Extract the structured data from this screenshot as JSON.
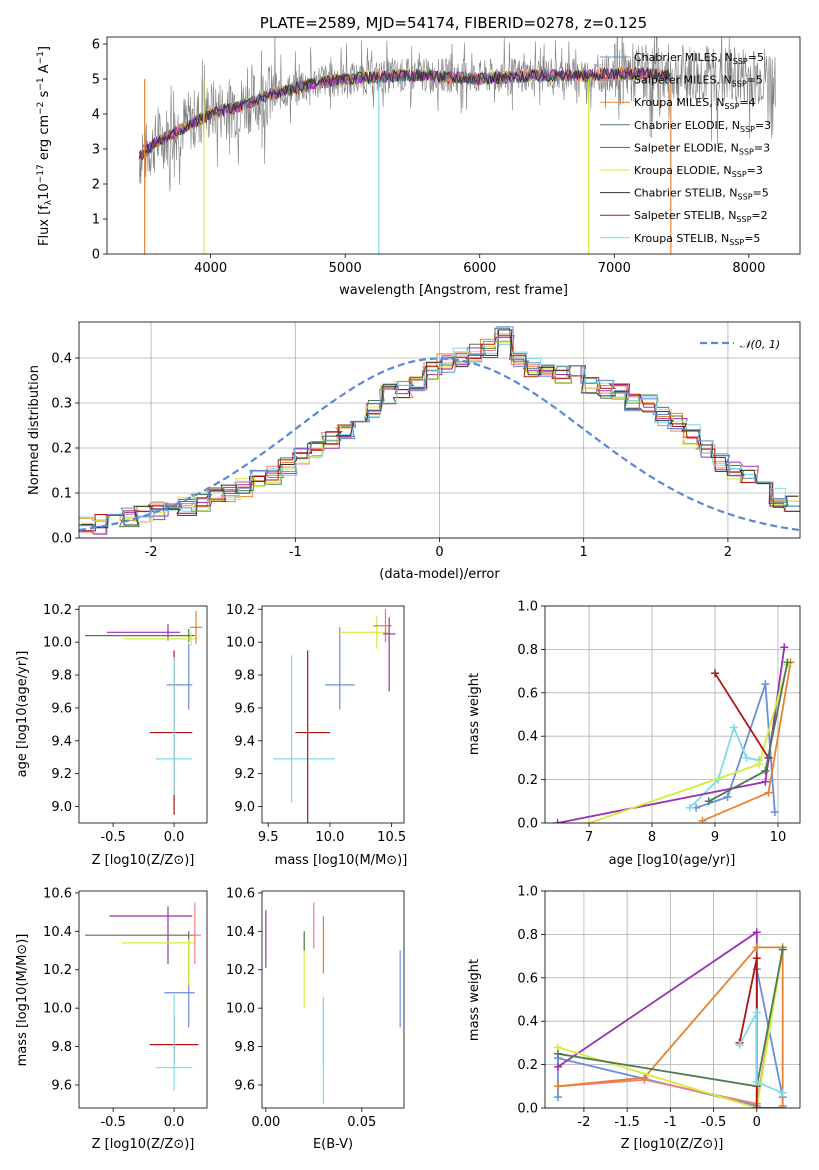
{
  "chart_data": [
    {
      "type": "line",
      "id": "spectrum",
      "title": "PLATE=2589, MJD=54174, FIBERID=0278, z=0.125",
      "xlabel": "wavelength [Angstrom, rest frame]",
      "ylabel": "Flux [f_λ 10^-17 erg cm^-2 s^-1 A^-1]",
      "xlim": [
        3230,
        8380
      ],
      "ylim": [
        0,
        6.2
      ],
      "xticks": [
        4000,
        5000,
        6000,
        7000,
        8000
      ],
      "yticks": [
        0,
        1,
        2,
        3,
        4,
        5,
        6
      ],
      "grid": false,
      "legend_position": "top-right",
      "data_continuum_x": [
        3470,
        3600,
        3800,
        4000,
        4200,
        4400,
        4600,
        4800,
        5000,
        5200,
        5400,
        5600,
        5800,
        6000,
        6200,
        6400,
        6600,
        6800,
        7000,
        7200,
        7400,
        7600,
        7800,
        8000,
        8200
      ],
      "data_continuum_y": [
        2.7,
        3.2,
        3.7,
        4.1,
        4.2,
        4.5,
        4.7,
        4.95,
        5.0,
        5.05,
        5.1,
        5.1,
        5.1,
        5.05,
        5.1,
        5.15,
        5.15,
        5.1,
        5.15,
        5.15,
        5.1,
        5.1,
        5.05,
        5.05,
        5.05
      ],
      "model_x": [
        3470,
        3600,
        3800,
        4000,
        4200,
        4400,
        4600,
        4800,
        5000,
        5200,
        5400,
        5600,
        5800,
        6000,
        6200,
        6400,
        6600,
        6800,
        7000,
        7200,
        7400
      ],
      "model_y": [
        2.8,
        3.2,
        3.6,
        4.0,
        4.2,
        4.5,
        4.7,
        4.9,
        5.0,
        5.05,
        5.1,
        5.1,
        5.05,
        5.0,
        5.05,
        5.1,
        5.1,
        5.1,
        5.15,
        5.15,
        5.1
      ],
      "series": [
        {
          "name": "Chabrier MILES, N_SSP=5",
          "color": "#6a8fd8"
        },
        {
          "name": "Salpeter MILES, N_SSP=5",
          "color": "#f08080"
        },
        {
          "name": "Kroupa MILES, N_SSP=4",
          "color": "#e8822e"
        },
        {
          "name": "Chabrier ELODIE, N_SSP=3",
          "color": "#4e7a55"
        },
        {
          "name": "Salpeter ELODIE, N_SSP=3",
          "color": "#9b30b0"
        },
        {
          "name": "Kroupa ELODIE, N_SSP=3",
          "color": "#d4ec3c"
        },
        {
          "name": "Chabrier STELIB, N_SSP=5",
          "color": "#333333"
        },
        {
          "name": "Salpeter STELIB, N_SSP=2",
          "color": "#b01515"
        },
        {
          "name": "Kroupa STELIB, N_SSP=5",
          "color": "#7fdce8"
        }
      ]
    },
    {
      "type": "histogram",
      "id": "residuals",
      "xlabel": "(data-model)/error",
      "ylabel": "Normed distribution",
      "xlim": [
        -2.5,
        2.5
      ],
      "ylim": [
        0,
        0.48
      ],
      "xticks": [
        -2,
        -1,
        0,
        1,
        2
      ],
      "yticks": [
        0.0,
        0.1,
        0.2,
        0.3,
        0.4
      ],
      "grid": true,
      "legend": "𝒩(0, 1)",
      "legend_position": "top-right",
      "bin_width": 0.1,
      "bin_start": -2.5,
      "base_values": [
        0.03,
        0.03,
        0.04,
        0.045,
        0.05,
        0.06,
        0.065,
        0.07,
        0.08,
        0.09,
        0.1,
        0.11,
        0.13,
        0.14,
        0.16,
        0.18,
        0.2,
        0.22,
        0.24,
        0.27,
        0.29,
        0.32,
        0.33,
        0.34,
        0.37,
        0.39,
        0.4,
        0.41,
        0.42,
        0.45,
        0.4,
        0.38,
        0.37,
        0.36,
        0.37,
        0.34,
        0.33,
        0.33,
        0.3,
        0.3,
        0.27,
        0.26,
        0.23,
        0.2,
        0.17,
        0.15,
        0.14,
        0.12,
        0.09,
        0.08
      ]
    },
    {
      "type": "scatter",
      "id": "Z_vs_age",
      "xlabel": "Z [log10(Z/Z⊙)]",
      "ylabel": "age [log10(age/yr)]",
      "xlim": [
        -0.78,
        0.27
      ],
      "ylim": [
        8.9,
        10.22
      ],
      "xticks": [
        -0.5,
        0.0
      ],
      "yticks": [
        9.0,
        9.2,
        9.4,
        9.6,
        9.8,
        10.0,
        10.2
      ],
      "points": [
        {
          "x": 0.12,
          "y": 9.74,
          "xerr": [
            0.18,
            0.03
          ],
          "yerr": [
            0.15,
            0.25
          ],
          "series": 0
        },
        {
          "x": -0.05,
          "y": 10.06,
          "xerr": [
            0.5,
            0.1
          ],
          "yerr": [
            0.05,
            0.05
          ],
          "series": 4
        },
        {
          "x": 0.12,
          "y": 10.04,
          "xerr": [
            0.85,
            0.05
          ],
          "yerr": [
            0.04,
            0.04
          ],
          "series": 3
        },
        {
          "x": 0.14,
          "y": 10.02,
          "xerr": [
            0.55,
            0.05
          ],
          "yerr": [
            0.04,
            0.04
          ],
          "series": 5
        },
        {
          "x": 0.0,
          "y": 9.45,
          "xerr": [
            0.2,
            0.15
          ],
          "yerr": [
            0.5,
            0.5
          ],
          "series": 7
        },
        {
          "x": 0.0,
          "y": 9.29,
          "xerr": [
            0.15,
            0.15
          ],
          "yerr": [
            0.22,
            0.62
          ],
          "series": 8
        },
        {
          "x": 0.18,
          "y": 10.09,
          "xerr": [
            0.05,
            0.05
          ],
          "yerr": [
            0.1,
            0.1
          ],
          "series": 2
        }
      ]
    },
    {
      "type": "scatter",
      "id": "mass_vs_age",
      "xlabel": "mass [log10(M/M⊙)]",
      "ylabel": "",
      "xlim": [
        9.45,
        10.6
      ],
      "ylim": [
        8.9,
        10.22
      ],
      "xticks": [
        9.5,
        10.0,
        10.5
      ],
      "yticks": [
        9.0,
        9.2,
        9.4,
        9.6,
        9.8,
        10.0,
        10.2
      ],
      "points": [
        {
          "x": 9.69,
          "y": 9.29,
          "xerr": [
            0.15,
            0.35
          ],
          "yerr": [
            0.27,
            0.63
          ],
          "series": 8
        },
        {
          "x": 9.82,
          "y": 9.45,
          "xerr": [
            0.1,
            0.18
          ],
          "yerr": [
            0.55,
            0.5
          ],
          "series": 7
        },
        {
          "x": 10.08,
          "y": 9.74,
          "xerr": [
            0.12,
            0.12
          ],
          "yerr": [
            0.15,
            0.35
          ],
          "series": 0
        },
        {
          "x": 10.38,
          "y": 10.06,
          "xerr": [
            0.3,
            0.1
          ],
          "yerr": [
            0.1,
            0.1
          ],
          "series": 5
        },
        {
          "x": 10.45,
          "y": 10.1,
          "xerr": [
            0.1,
            0.05
          ],
          "yerr": [
            0.1,
            0.1
          ],
          "series": 2
        },
        {
          "x": 10.48,
          "y": 10.05,
          "xerr": [
            0.05,
            0.05
          ],
          "yerr": [
            0.35,
            0.1
          ],
          "series": 4
        }
      ]
    },
    {
      "type": "line",
      "id": "age_vs_massweight",
      "xlabel": "age [log10(age/yr)]",
      "ylabel": "mass weight",
      "xlim": [
        6.3,
        10.35
      ],
      "ylim": [
        0,
        1.0
      ],
      "xticks": [
        7,
        8,
        9,
        10
      ],
      "yticks": [
        0.0,
        0.2,
        0.4,
        0.6,
        0.8,
        1.0
      ],
      "series": [
        {
          "color": "#6a8fd8",
          "x": [
            8.7,
            9.2,
            9.8,
            9.95
          ],
          "y": [
            0.07,
            0.12,
            0.64,
            0.05
          ]
        },
        {
          "color": "#7fdce8",
          "x": [
            8.6,
            9.05,
            9.3,
            9.5,
            9.7
          ],
          "y": [
            0.07,
            0.2,
            0.44,
            0.3,
            0.29
          ]
        },
        {
          "color": "#9b30b0",
          "x": [
            6.5,
            9.8,
            10.1
          ],
          "y": [
            0.0,
            0.19,
            0.81
          ]
        },
        {
          "color": "#e8822e",
          "x": [
            8.8,
            9.85,
            10.2
          ],
          "y": [
            0.01,
            0.14,
            0.74
          ]
        },
        {
          "color": "#d4ec3c",
          "x": [
            7.0,
            9.7,
            10.15
          ],
          "y": [
            0.0,
            0.27,
            0.73
          ]
        },
        {
          "color": "#b01515",
          "x": [
            9.0,
            9.85
          ],
          "y": [
            0.69,
            0.3
          ]
        },
        {
          "color": "#4e7a55",
          "x": [
            8.9,
            9.8,
            10.15
          ],
          "y": [
            0.1,
            0.24,
            0.74
          ]
        }
      ]
    },
    {
      "type": "scatter",
      "id": "Z_vs_mass",
      "xlabel": "Z [log10(Z/Z⊙)]",
      "ylabel": "mass [log10(M/M⊙)]",
      "xlim": [
        -0.78,
        0.27
      ],
      "ylim": [
        9.48,
        10.61
      ],
      "xticks": [
        -0.5,
        0.0
      ],
      "yticks": [
        9.6,
        9.8,
        10.0,
        10.2,
        10.4,
        10.6
      ],
      "points": [
        {
          "x": 0.12,
          "y": 10.08,
          "xerr": [
            0.2,
            0.05
          ],
          "yerr": [
            0.18,
            0.08
          ],
          "series": 0
        },
        {
          "x": -0.05,
          "y": 10.48,
          "xerr": [
            0.48,
            0.2
          ],
          "yerr": [
            0.25,
            0.05
          ],
          "series": 4
        },
        {
          "x": 0.12,
          "y": 10.38,
          "xerr": [
            0.85,
            0.05
          ],
          "yerr": [
            0.22,
            0.02
          ],
          "series": 3
        },
        {
          "x": 0.12,
          "y": 10.34,
          "xerr": [
            0.55,
            0.05
          ],
          "yerr": [
            0.22,
            0.02
          ],
          "series": 5
        },
        {
          "x": 0.0,
          "y": 9.81,
          "xerr": [
            0.2,
            0.2
          ],
          "yerr": [
            0.1,
            0.15
          ],
          "series": 7
        },
        {
          "x": 0.0,
          "y": 9.69,
          "xerr": [
            0.15,
            0.15
          ],
          "yerr": [
            0.12,
            0.38
          ],
          "series": 8
        },
        {
          "x": 0.17,
          "y": 10.38,
          "xerr": [
            0.05,
            0.05
          ],
          "yerr": [
            0.15,
            0.17
          ],
          "series": 1
        }
      ]
    },
    {
      "type": "scatter",
      "id": "EBV_vs_mass",
      "xlabel": "E(B-V)",
      "ylabel": "",
      "xlim": [
        -0.002,
        0.072
      ],
      "ylim": [
        9.48,
        10.61
      ],
      "xticks": [
        0.0,
        0.05
      ],
      "yticks": [
        9.6,
        9.8,
        10.0,
        10.2,
        10.4,
        10.6
      ],
      "points": [
        {
          "x": 0.0,
          "y": 10.36,
          "yerr": [
            0.15,
            0.15
          ],
          "series": 4
        },
        {
          "x": 0.02,
          "y": 10.2,
          "yerr": [
            0.2,
            0.2
          ],
          "series": 5
        },
        {
          "x": 0.02,
          "y": 10.35,
          "yerr": [
            0.05,
            0.05
          ],
          "series": 3
        },
        {
          "x": 0.025,
          "y": 10.43,
          "yerr": [
            0.12,
            0.12
          ],
          "series": 1
        },
        {
          "x": 0.03,
          "y": 10.33,
          "yerr": [
            0.15,
            0.15
          ],
          "series": 2
        },
        {
          "x": 0.03,
          "y": 9.88,
          "yerr": [
            0.17,
            0.17
          ],
          "series": 0
        },
        {
          "x": 0.03,
          "y": 9.78,
          "yerr": [
            0.28,
            0.28
          ],
          "series": 8
        },
        {
          "x": 0.07,
          "y": 10.1,
          "yerr": [
            0.2,
            0.2
          ],
          "series": 0
        }
      ]
    },
    {
      "type": "line",
      "id": "Z_vs_massweight",
      "xlabel": "Z [log10(Z/Z⊙)]",
      "ylabel": "mass weight",
      "xlim": [
        -2.45,
        0.5
      ],
      "ylim": [
        0,
        1.0
      ],
      "xticks": [
        -2.0,
        -1.5,
        -1.0,
        -0.5,
        0.0
      ],
      "yticks": [
        0.0,
        0.2,
        0.4,
        0.6,
        0.8,
        1.0
      ],
      "series": [
        {
          "color": "#6a8fd8",
          "x": [
            -2.3,
            -2.3,
            0.0,
            0.0,
            0.3
          ],
          "y": [
            0.05,
            0.23,
            0.01,
            0.64,
            0.05
          ]
        },
        {
          "color": "#f08080",
          "x": [
            -2.3,
            -1.3,
            0.0,
            0.3
          ],
          "y": [
            0.1,
            0.13,
            0.02,
            0.74
          ]
        },
        {
          "color": "#9b30b0",
          "x": [
            -2.3,
            0.0,
            0.0,
            0.3
          ],
          "y": [
            0.19,
            0.81,
            0.0,
            0.0
          ]
        },
        {
          "color": "#e8822e",
          "x": [
            -2.3,
            -1.3,
            0.0,
            0.3,
            0.3
          ],
          "y": [
            0.1,
            0.14,
            0.74,
            0.74,
            0.01
          ]
        },
        {
          "color": "#d4ec3c",
          "x": [
            -2.3,
            0.0,
            0.3
          ],
          "y": [
            0.28,
            0.0,
            0.73
          ]
        },
        {
          "color": "#4e7a55",
          "x": [
            -2.3,
            0.0,
            0.3
          ],
          "y": [
            0.25,
            0.1,
            0.73
          ]
        },
        {
          "color": "#b01515",
          "x": [
            -0.2,
            0.0,
            0.0
          ],
          "y": [
            0.3,
            0.69,
            0.0
          ]
        },
        {
          "color": "#7fdce8",
          "x": [
            -0.2,
            0.0,
            0.0,
            0.3
          ],
          "y": [
            0.29,
            0.44,
            0.12,
            0.07
          ]
        }
      ]
    }
  ]
}
